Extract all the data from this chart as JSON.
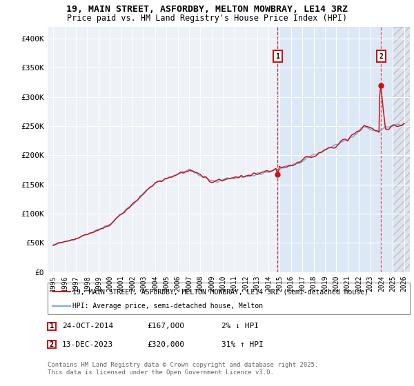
{
  "title_line1": "19, MAIN STREET, ASFORDBY, MELTON MOWBRAY, LE14 3RZ",
  "title_line2": "Price paid vs. HM Land Registry's House Price Index (HPI)",
  "ylabel_ticks": [
    "£0",
    "£50K",
    "£100K",
    "£150K",
    "£200K",
    "£250K",
    "£300K",
    "£350K",
    "£400K"
  ],
  "ytick_values": [
    0,
    50000,
    100000,
    150000,
    200000,
    250000,
    300000,
    350000,
    400000
  ],
  "ylim": [
    0,
    420000
  ],
  "xlim_start": 1994.5,
  "xlim_end": 2026.5,
  "background_color": "#ffffff",
  "plot_bg_color": "#dce8f5",
  "plot_bg_color_early": "#eef2f8",
  "grid_color": "#ffffff",
  "hpi_line_color": "#7aadd4",
  "price_line_color": "#cc1111",
  "marker1_x": 2014.82,
  "marker1_y": 167000,
  "marker2_x": 2023.95,
  "marker2_y": 320000,
  "highlight_start": 2014.82,
  "highlight_end": 2025.0,
  "hatch_start": 2025.0,
  "annotation1_date": "24-OCT-2014",
  "annotation1_price": "£167,000",
  "annotation1_hpi": "2% ↓ HPI",
  "annotation2_date": "13-DEC-2023",
  "annotation2_price": "£320,000",
  "annotation2_hpi": "31% ↑ HPI",
  "legend_label1": "19, MAIN STREET, ASFORDBY, MELTON MOWBRAY, LE14 3RZ (semi-detached house)",
  "legend_label2": "HPI: Average price, semi-detached house, Melton",
  "footer_text": "Contains HM Land Registry data © Crown copyright and database right 2025.\nThis data is licensed under the Open Government Licence v3.0.",
  "xtick_years": [
    1995,
    1996,
    1997,
    1998,
    1999,
    2000,
    2001,
    2002,
    2003,
    2004,
    2005,
    2006,
    2007,
    2008,
    2009,
    2010,
    2011,
    2012,
    2013,
    2014,
    2015,
    2016,
    2017,
    2018,
    2019,
    2020,
    2021,
    2022,
    2023,
    2024,
    2025,
    2026
  ]
}
